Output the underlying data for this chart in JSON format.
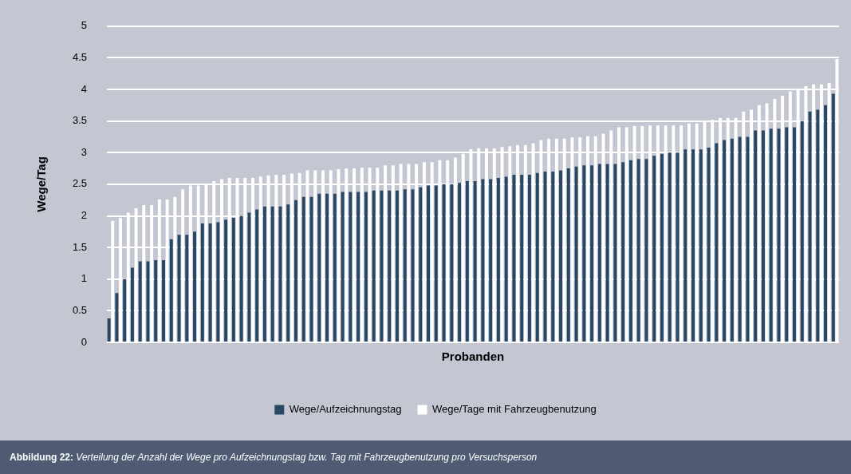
{
  "chart_data": {
    "type": "bar",
    "title": "Abbildung 22:",
    "subtitle": "Verteilung der Anzahl der Wege pro Aufzeichnungstag bzw. Tag mit Fahrzeugbenutzung pro Versuchsperson",
    "xlabel": "Probanden",
    "ylabel": "Wege/Tag",
    "categories": [
      null,
      null,
      null,
      null,
      null,
      null,
      null,
      null,
      null,
      null,
      null,
      null,
      null,
      null,
      null,
      null,
      null,
      null,
      null,
      null,
      null,
      null,
      null,
      null,
      null,
      null,
      null,
      null,
      null,
      null,
      null,
      null,
      null,
      null,
      null,
      null,
      null,
      null,
      null,
      null,
      null,
      null,
      null,
      null,
      null,
      null,
      null,
      null,
      null,
      null,
      null,
      null,
      null,
      null,
      null,
      null,
      null,
      null,
      null,
      null,
      null,
      null,
      null,
      null,
      null,
      null,
      null,
      null,
      null,
      null,
      null,
      null,
      null,
      null,
      null,
      null,
      null,
      null,
      null,
      null,
      null,
      null,
      null,
      null,
      null,
      null,
      null,
      null,
      null,
      null,
      null,
      null,
      null,
      null
    ],
    "series": [
      {
        "name": "Wege/Aufzeichnungstag",
        "color": "#284764",
        "values": [
          0.38,
          0.78,
          1.0,
          1.18,
          1.28,
          1.28,
          1.3,
          1.3,
          1.63,
          1.7,
          1.7,
          1.75,
          1.88,
          1.88,
          1.9,
          1.94,
          1.97,
          2.0,
          2.05,
          2.1,
          2.15,
          2.15,
          2.15,
          2.18,
          2.25,
          2.3,
          2.3,
          2.35,
          2.35,
          2.35,
          2.38,
          2.38,
          2.38,
          2.38,
          2.4,
          2.4,
          2.4,
          2.4,
          2.42,
          2.42,
          2.45,
          2.48,
          2.48,
          2.5,
          2.5,
          2.52,
          2.55,
          2.55,
          2.58,
          2.58,
          2.6,
          2.62,
          2.65,
          2.65,
          2.65,
          2.68,
          2.7,
          2.7,
          2.72,
          2.75,
          2.78,
          2.8,
          2.8,
          2.82,
          2.82,
          2.82,
          2.85,
          2.88,
          2.9,
          2.9,
          2.95,
          2.98,
          3.0,
          3.0,
          3.05,
          3.05,
          3.05,
          3.08,
          3.15,
          3.2,
          3.22,
          3.25,
          3.25,
          3.35,
          3.35,
          3.38,
          3.38,
          3.4,
          3.4,
          3.5,
          3.65,
          3.68,
          3.75,
          3.93
        ]
      },
      {
        "name": "Wege/Tage mit Fahrzeugbenutzung",
        "color": "#ffffff",
        "values": [
          1.92,
          1.97,
          2.05,
          2.12,
          2.17,
          2.17,
          2.26,
          2.26,
          2.3,
          2.42,
          2.48,
          2.48,
          2.5,
          2.55,
          2.58,
          2.6,
          2.6,
          2.6,
          2.6,
          2.62,
          2.64,
          2.65,
          2.65,
          2.67,
          2.68,
          2.72,
          2.72,
          2.72,
          2.72,
          2.74,
          2.75,
          2.75,
          2.76,
          2.76,
          2.76,
          2.8,
          2.8,
          2.82,
          2.82,
          2.82,
          2.85,
          2.85,
          2.88,
          2.88,
          2.92,
          2.98,
          3.05,
          3.07,
          3.07,
          3.07,
          3.09,
          3.1,
          3.12,
          3.12,
          3.15,
          3.2,
          3.22,
          3.22,
          3.22,
          3.24,
          3.24,
          3.26,
          3.26,
          3.3,
          3.35,
          3.4,
          3.4,
          3.42,
          3.42,
          3.43,
          3.43,
          3.43,
          3.43,
          3.43,
          3.46,
          3.46,
          3.5,
          3.52,
          3.55,
          3.55,
          3.55,
          3.65,
          3.68,
          3.75,
          3.78,
          3.85,
          3.9,
          3.97,
          4.0,
          4.05,
          4.08,
          4.08,
          4.1,
          4.48
        ]
      }
    ],
    "ylim": [
      0,
      5
    ],
    "yticks": [
      0,
      0.5,
      1,
      1.5,
      2,
      2.5,
      3,
      3.5,
      4,
      4.5,
      5
    ],
    "grid": "y",
    "legend": "bottom",
    "tick_labels": "y"
  }
}
